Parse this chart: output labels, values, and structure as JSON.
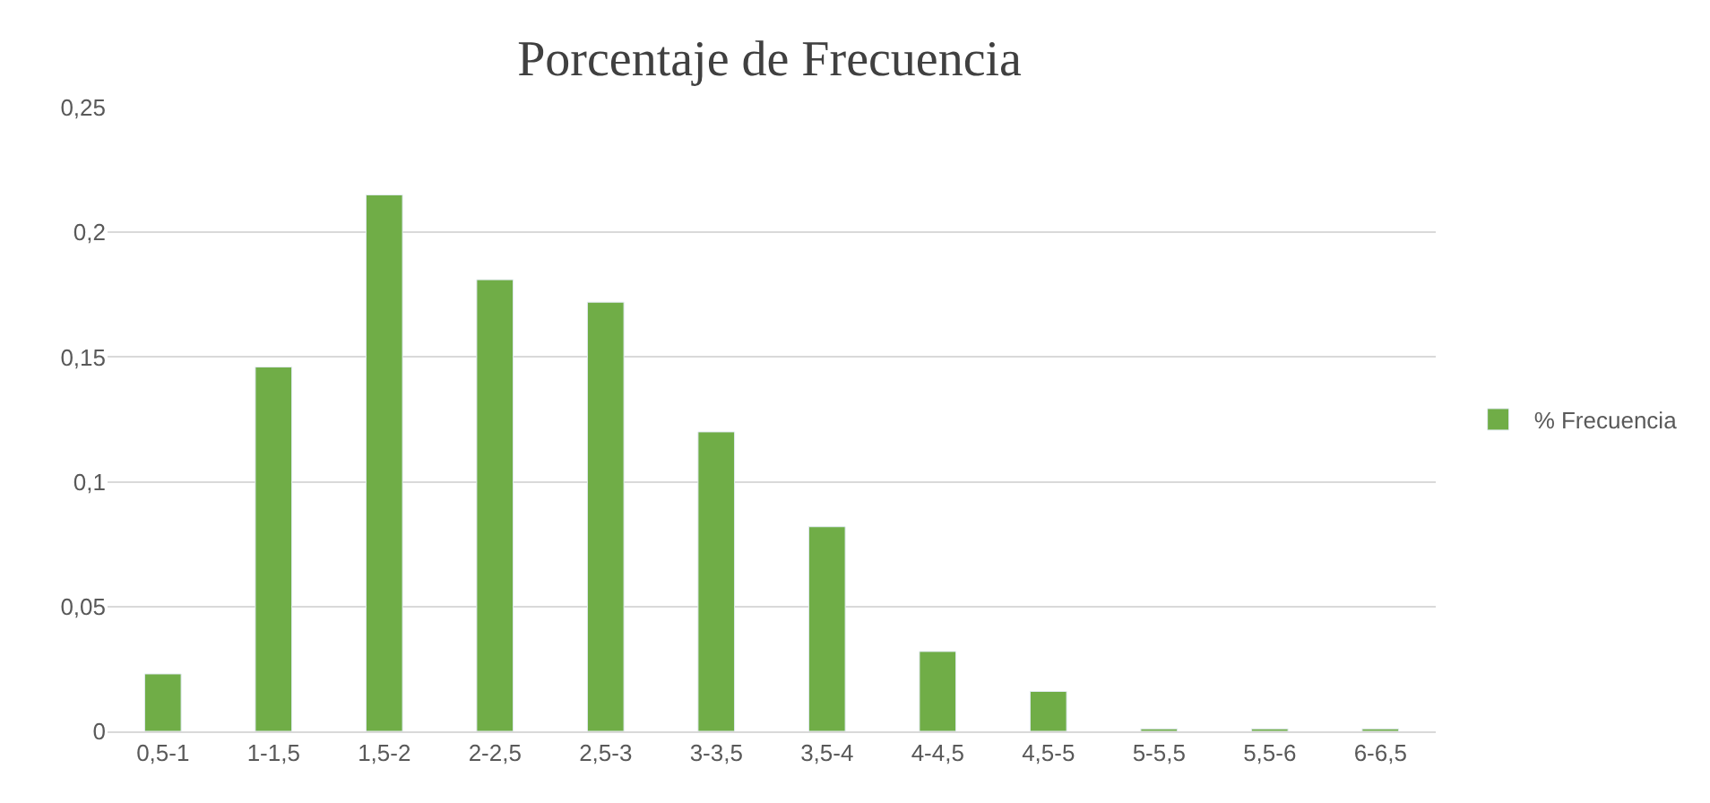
{
  "chart_data": {
    "type": "bar",
    "title": "Porcentaje de Frecuencia",
    "categories": [
      "0,5-1",
      "1-1,5",
      "1,5-2",
      "2-2,5",
      "2,5-3",
      "3-3,5",
      "3,5-4",
      "4-4,5",
      "4,5-5",
      "5-5,5",
      "5,5-6",
      "6-6,5"
    ],
    "series": [
      {
        "name": "% Frecuencia",
        "color": "#70ad47",
        "values": [
          0.023,
          0.146,
          0.215,
          0.181,
          0.172,
          0.12,
          0.082,
          0.032,
          0.016,
          0.001,
          0.001,
          0.001
        ]
      }
    ],
    "ylim": [
      0,
      0.25
    ],
    "yticks": [
      0,
      {
        "value": 0.05,
        "label": "0,05"
      },
      {
        "value": 0.1,
        "label": "0,1"
      },
      {
        "value": 0.15,
        "label": "0,15"
      },
      {
        "value": 0.2,
        "label": "0,2"
      },
      {
        "value": 0.25,
        "label": "0,25"
      }
    ],
    "grid": "y",
    "legend": "right"
  }
}
